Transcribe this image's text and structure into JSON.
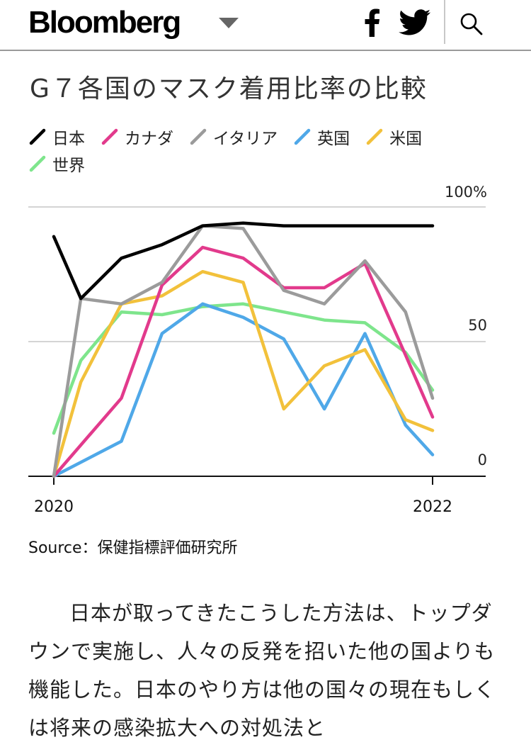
{
  "header": {
    "logo_text": "Bloomberg",
    "icons": [
      "chevron-down-icon",
      "facebook-icon",
      "twitter-icon",
      "search-icon"
    ]
  },
  "chart_data": {
    "type": "line",
    "title": "G７各国のマスク着用比率の比較",
    "xlabel": "",
    "ylabel": "",
    "x_tick_labels": [
      "2020",
      "2022"
    ],
    "y_tick_labels": [
      "100%",
      "50",
      "0"
    ],
    "y_ticks": [
      100,
      50,
      0
    ],
    "ylim": [
      0,
      100
    ],
    "xlim": [
      0,
      14
    ],
    "grid": true,
    "legend_position": "top",
    "series": [
      {
        "name": "日本",
        "color": "#000000",
        "x": [
          0,
          1,
          2.5,
          4,
          5.5,
          7,
          8.5,
          10,
          11.5,
          13,
          14
        ],
        "values": [
          89,
          66,
          81,
          86,
          93,
          94,
          93,
          93,
          93,
          93,
          93
        ]
      },
      {
        "name": "カナダ",
        "color": "#e23a8c",
        "x": [
          0,
          2.5,
          4,
          5.5,
          7,
          8.5,
          10,
          11.5,
          13,
          14
        ],
        "values": [
          0,
          29,
          71,
          85,
          81,
          70,
          70,
          79,
          45,
          22
        ]
      },
      {
        "name": "イタリア",
        "color": "#9b9b9b",
        "x": [
          0,
          1,
          2.5,
          4,
          5.5,
          7,
          8.5,
          10,
          11.5,
          13,
          14
        ],
        "values": [
          0,
          66,
          64,
          72,
          93,
          92,
          69,
          64,
          80,
          61,
          29
        ]
      },
      {
        "name": "英国",
        "color": "#4fa8e8",
        "x": [
          0,
          2.5,
          4,
          5.5,
          7,
          8.5,
          10,
          11.5,
          13,
          14
        ],
        "values": [
          0,
          13,
          53,
          64,
          59,
          51,
          25,
          53,
          19,
          8
        ]
      },
      {
        "name": "米国",
        "color": "#f2c13b",
        "x": [
          0,
          1,
          2.5,
          4,
          5.5,
          7,
          8.5,
          10,
          11.5,
          13,
          14
        ],
        "values": [
          0,
          35,
          64,
          67,
          76,
          72,
          25,
          41,
          47,
          21,
          17
        ]
      },
      {
        "name": "世界",
        "color": "#7ee58c",
        "x": [
          0,
          1,
          2.5,
          4,
          5.5,
          7,
          8.5,
          10,
          11.5,
          13,
          14
        ],
        "values": [
          16,
          43,
          61,
          60,
          63,
          64,
          61,
          58,
          57,
          46,
          32
        ]
      }
    ]
  },
  "source_text": "Source：保健指標評価研究所",
  "article_text": "日本が取ってきたこうした方法は、トップダウンで実施し、人々の反発を招いた他の国よりも機能した。日本のやり方は他の国々の現在もしくは将来の感染拡大への対処法と"
}
